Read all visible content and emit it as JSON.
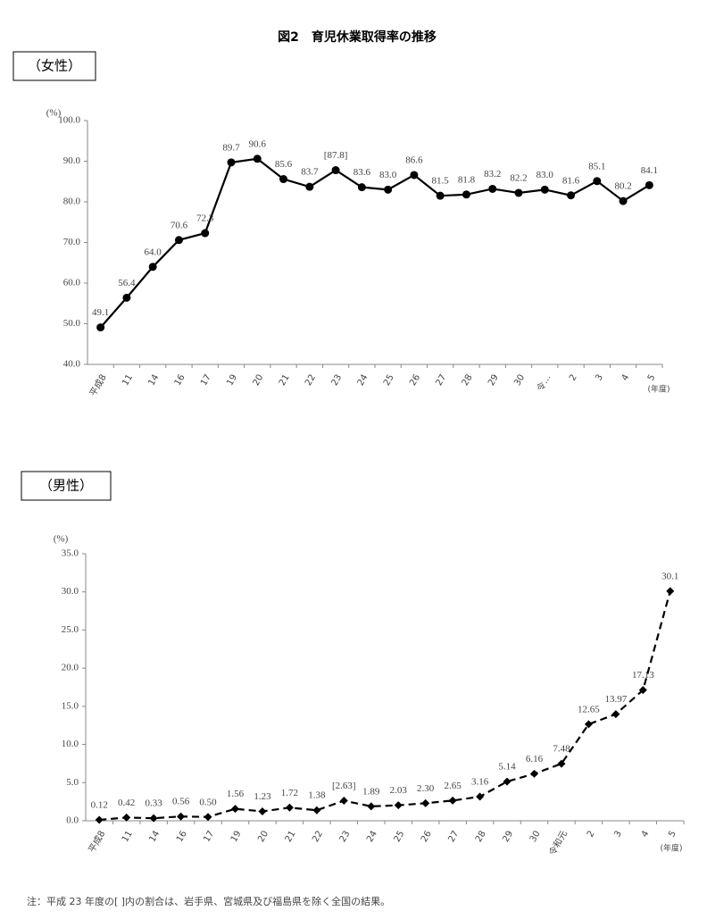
{
  "title": "図2　育児休業取得率の推移",
  "note": "注：平成 23 年度の[ ]内の割合は、岩手県、宮城県及び福島県を除く全国の結果。",
  "chart_data": [
    {
      "type": "line",
      "heading": "（女性）",
      "y_unit": "(%)",
      "x_unit": "(年度)",
      "categories": [
        "平成8",
        "11",
        "14",
        "16",
        "17",
        "19",
        "20",
        "21",
        "22",
        "23",
        "24",
        "25",
        "26",
        "27",
        "28",
        "29",
        "30",
        "令…",
        "2",
        "3",
        "4",
        "5"
      ],
      "series": [
        {
          "name": "女性",
          "color": "#000000",
          "line_style": "solid",
          "marker": "circle",
          "values": [
            49.1,
            56.4,
            64.0,
            70.6,
            72.3,
            89.7,
            90.6,
            85.6,
            83.7,
            87.8,
            83.6,
            83.0,
            86.6,
            81.5,
            81.8,
            83.2,
            82.2,
            83.0,
            81.6,
            85.1,
            80.2,
            84.1
          ],
          "value_labels": [
            "49.1",
            "56.4",
            "64.0",
            "70.6",
            "72.3",
            "89.7",
            "90.6",
            "85.6",
            "83.7",
            "[87.8]",
            "83.6",
            "83.0",
            "86.6",
            "81.5",
            "81.8",
            "83.2",
            "82.2",
            "83.0",
            "81.6",
            "85.1",
            "80.2",
            "84.1"
          ]
        }
      ],
      "ylim": [
        40,
        100
      ],
      "yticks": [
        {
          "value": 40,
          "label": "40.0"
        },
        {
          "value": 50,
          "label": "50.0"
        },
        {
          "value": 60,
          "label": "60.0"
        },
        {
          "value": 70,
          "label": "70.0"
        },
        {
          "value": 80,
          "label": "80.0"
        },
        {
          "value": 90,
          "label": "90.0"
        },
        {
          "value": 100,
          "label": "100.0"
        }
      ],
      "grid": false
    },
    {
      "type": "line",
      "heading": "（男性）",
      "y_unit": "(%)",
      "x_unit": "(年度)",
      "categories": [
        "平成8",
        "11",
        "14",
        "16",
        "17",
        "19",
        "20",
        "21",
        "22",
        "23",
        "24",
        "25",
        "26",
        "27",
        "28",
        "29",
        "30",
        "令和元",
        "2",
        "3",
        "4",
        "5"
      ],
      "series": [
        {
          "name": "男性",
          "color": "#000000",
          "line_style": "dashed",
          "marker": "diamond",
          "values": [
            0.12,
            0.42,
            0.33,
            0.56,
            0.5,
            1.56,
            1.23,
            1.72,
            1.38,
            2.63,
            1.89,
            2.03,
            2.3,
            2.65,
            3.16,
            5.14,
            6.16,
            7.48,
            12.65,
            13.97,
            17.13,
            30.1
          ],
          "value_labels": [
            "0.12",
            "0.42",
            "0.33",
            "0.56",
            "0.50",
            "1.56",
            "1.23",
            "1.72",
            "1.38",
            "[2.63]",
            "1.89",
            "2.03",
            "2.30",
            "2.65",
            "3.16",
            "5.14",
            "6.16",
            "7.48",
            "12.65",
            "13.97",
            "17.13",
            "30.1"
          ]
        }
      ],
      "ylim": [
        0,
        35
      ],
      "yticks": [
        {
          "value": 0,
          "label": "0.0"
        },
        {
          "value": 5,
          "label": "5.0"
        },
        {
          "value": 10,
          "label": "10.0"
        },
        {
          "value": 15,
          "label": "15.0"
        },
        {
          "value": 20,
          "label": "20.0"
        },
        {
          "value": 25,
          "label": "25.0"
        },
        {
          "value": 30,
          "label": "30.0"
        },
        {
          "value": 35,
          "label": "35.0"
        }
      ],
      "grid": false
    }
  ]
}
